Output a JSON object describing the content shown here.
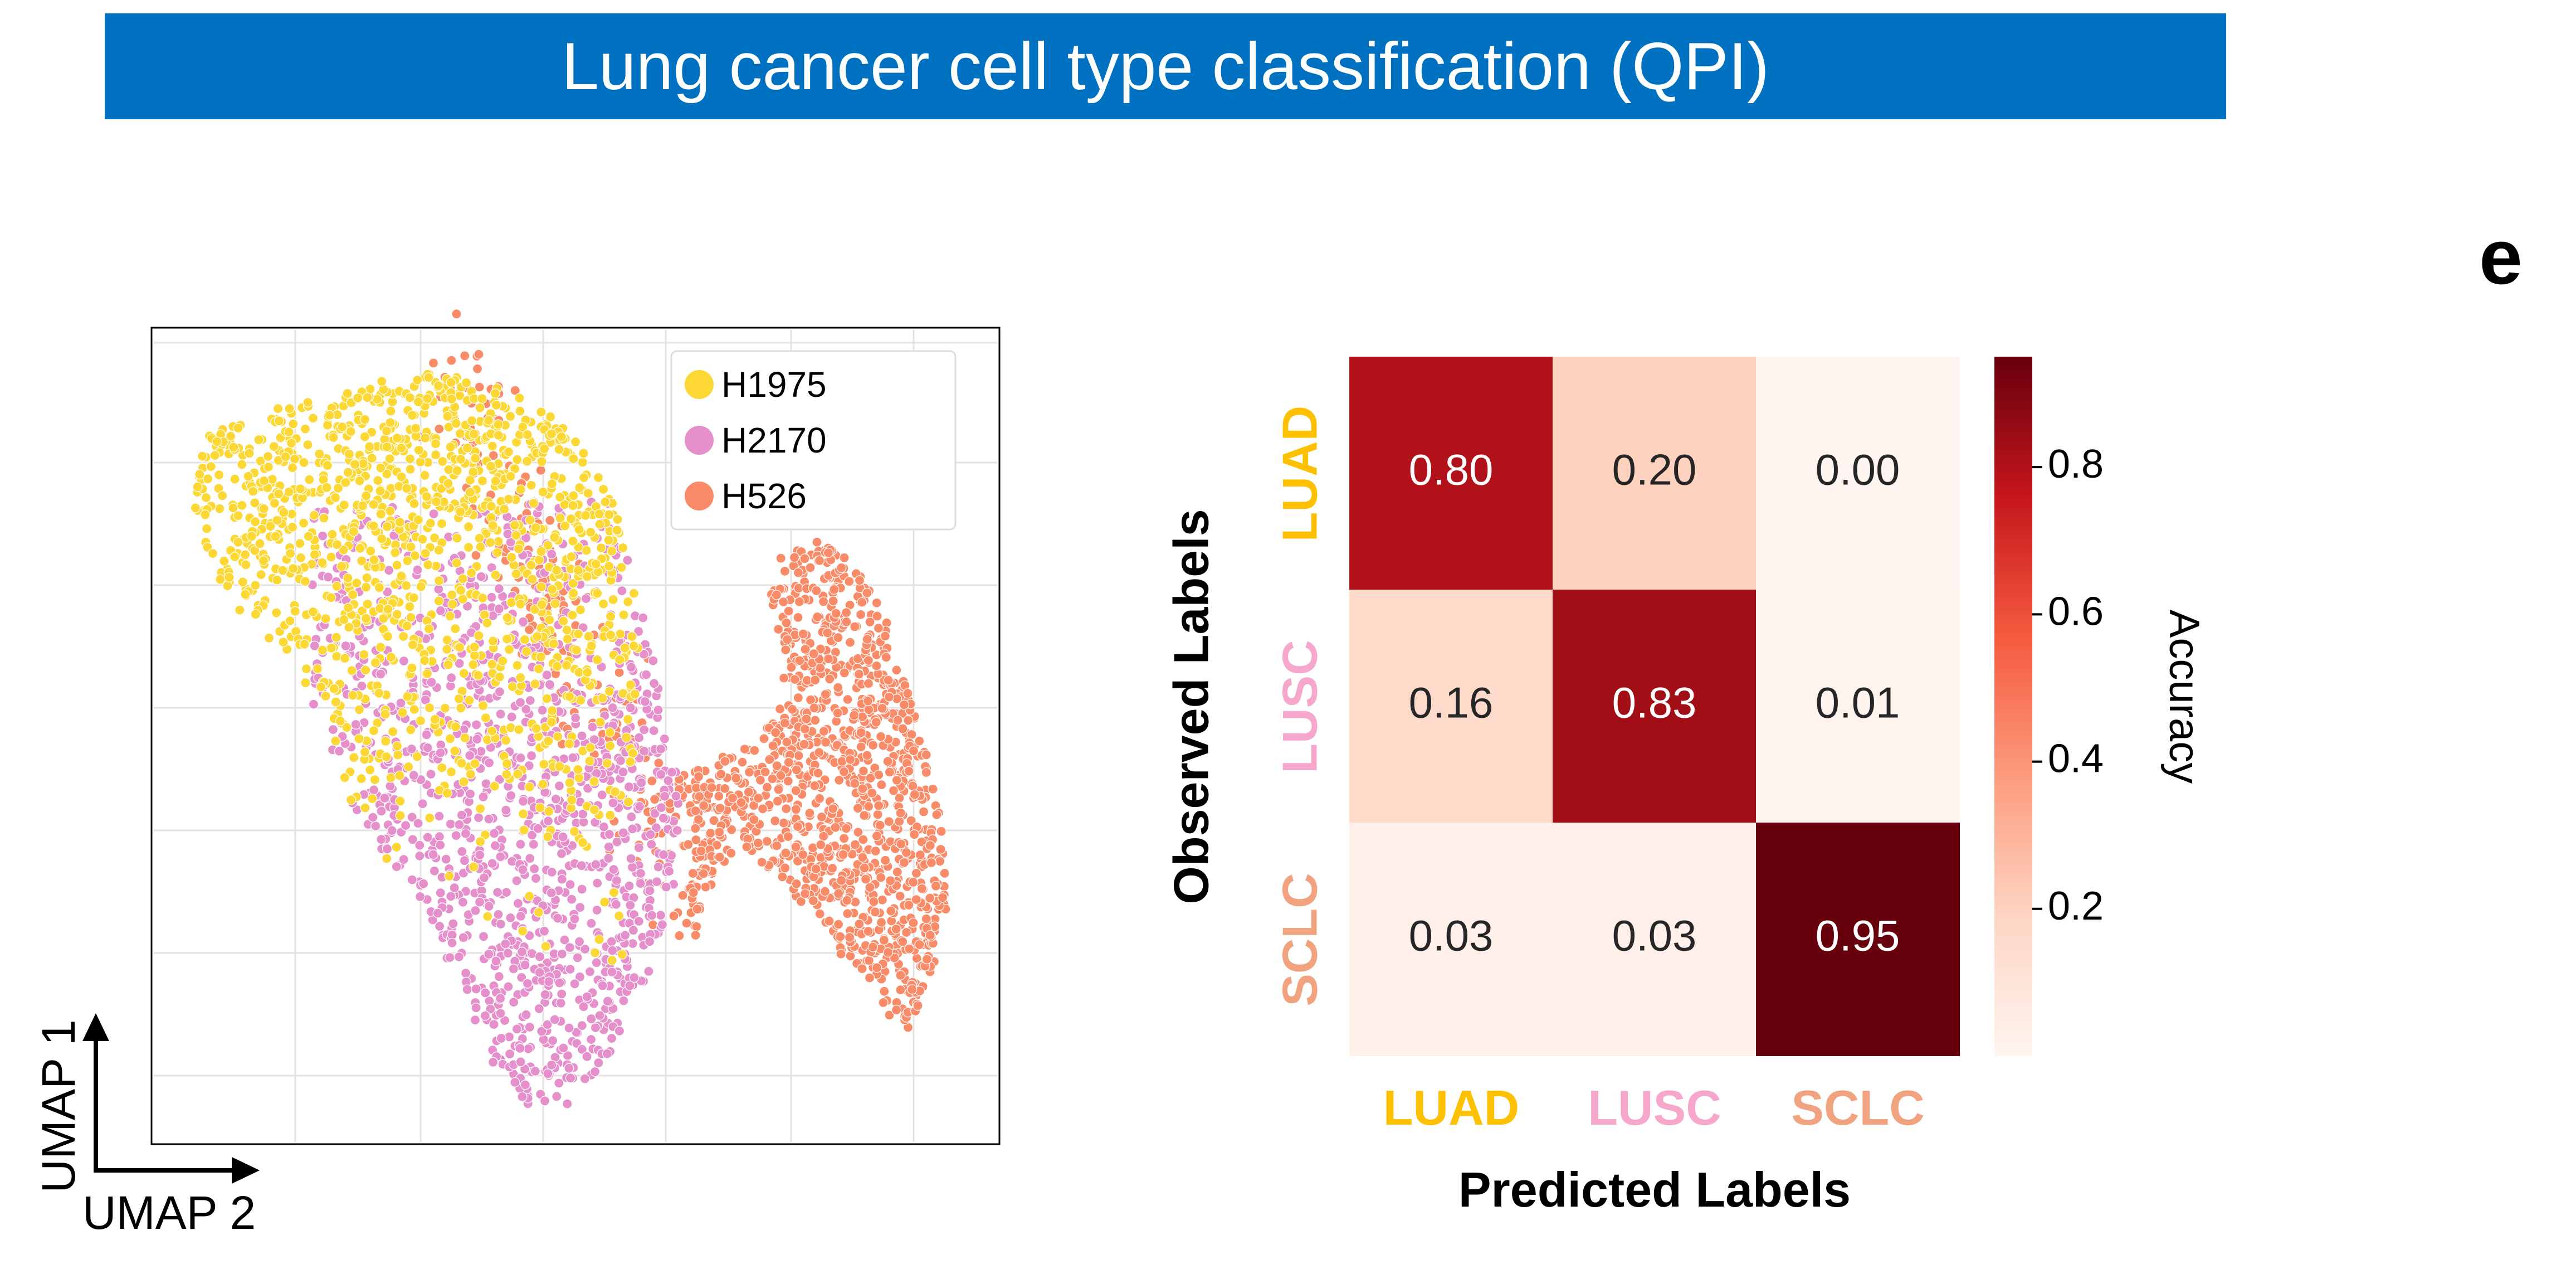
{
  "header": {
    "title": "Lung cancer cell type classification (QPI)"
  },
  "panel_letter": "e",
  "colors": {
    "banner": "#0070C0",
    "H1975": "#FDD835",
    "H2170": "#E58FCB",
    "H526": "#F98B68",
    "LUAD": "#FFC000",
    "LUSC": "#F7A7CC",
    "SCLC": "#F1A27F"
  },
  "chart_data": [
    {
      "type": "scatter",
      "title": "",
      "xlabel": "UMAP 2",
      "ylabel": "UMAP 1",
      "grid": true,
      "legend": {
        "placement": "top-right",
        "entries": [
          "H1975",
          "H2170",
          "H526"
        ]
      },
      "series": [
        {
          "name": "H1975",
          "color": "#FDD835",
          "region": "upper-left cluster"
        },
        {
          "name": "H2170",
          "color": "#E58FCB",
          "region": "middle-left cluster"
        },
        {
          "name": "H526",
          "color": "#F98B68",
          "region": "right cluster"
        }
      ]
    },
    {
      "type": "heatmap",
      "title": "",
      "xlabel": "Predicted Labels",
      "ylabel": "Observed Labels",
      "x_categories": [
        "LUAD",
        "LUSC",
        "SCLC"
      ],
      "y_categories": [
        "LUAD",
        "LUSC",
        "SCLC"
      ],
      "values": [
        [
          0.8,
          0.2,
          0.0
        ],
        [
          0.16,
          0.83,
          0.01
        ],
        [
          0.03,
          0.03,
          0.95
        ]
      ],
      "cell_labels": [
        [
          "0.80",
          "0.20",
          "0.00"
        ],
        [
          "0.16",
          "0.83",
          "0.01"
        ],
        [
          "0.03",
          "0.03",
          "0.95"
        ]
      ],
      "colorbar": {
        "label": "Accuracy",
        "ticks": [
          0.2,
          0.4,
          0.6,
          0.8
        ],
        "tick_labels": [
          "0.2",
          "0.4",
          "0.6",
          "0.8"
        ],
        "range": [
          0.0,
          0.95
        ],
        "colormap": "Reds"
      }
    }
  ]
}
